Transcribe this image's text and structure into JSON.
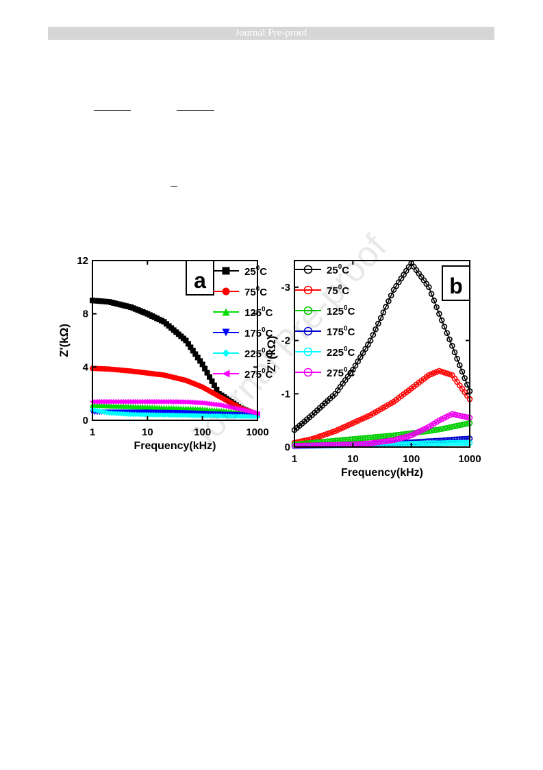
{
  "header": {
    "label": "Journal Pre-proof"
  },
  "watermark": {
    "text": "Journal Pre-proof"
  },
  "chart_data": [
    {
      "panel": "a",
      "type": "line",
      "xscale": "log",
      "xlim": [
        1,
        1000
      ],
      "ylim": [
        0,
        12
      ],
      "xticks": [
        "1",
        "10",
        "100",
        "1000"
      ],
      "yticks": [
        "0",
        "4",
        "8",
        "12"
      ],
      "xlabel": "Frequency(kHz)",
      "ylabel": "Z'(kΩ)",
      "legend_position": "top-right",
      "grid": false,
      "x": [
        1,
        2,
        5,
        10,
        20,
        50,
        100,
        200,
        500,
        1000
      ],
      "series": [
        {
          "name": "25°C",
          "label_base": "25",
          "color": "#000000",
          "marker": "square",
          "values": [
            9.0,
            8.9,
            8.5,
            8.0,
            7.4,
            6.0,
            4.2,
            2.0,
            0.9,
            0.4
          ]
        },
        {
          "name": "75°C",
          "label_base": "75",
          "color": "#ff0000",
          "marker": "circle",
          "values": [
            3.9,
            3.85,
            3.7,
            3.55,
            3.4,
            3.0,
            2.5,
            1.8,
            0.9,
            0.45
          ]
        },
        {
          "name": "125°C",
          "label_base": "125",
          "color": "#00dd00",
          "marker": "triangle-up",
          "values": [
            1.15,
            1.1,
            1.05,
            1.0,
            0.95,
            0.9,
            0.85,
            0.75,
            0.6,
            0.45
          ]
        },
        {
          "name": "175°C",
          "label_base": "175",
          "color": "#0000ff",
          "marker": "triangle-down",
          "values": [
            0.6,
            0.6,
            0.6,
            0.6,
            0.58,
            0.55,
            0.5,
            0.45,
            0.4,
            0.35
          ]
        },
        {
          "name": "225°C",
          "label_base": "225",
          "color": "#00ffff",
          "marker": "diamond",
          "values": [
            0.8,
            0.55,
            0.45,
            0.42,
            0.4,
            0.38,
            0.35,
            0.33,
            0.3,
            0.28
          ]
        },
        {
          "name": "275°C",
          "label_base": "275",
          "color": "#ff00ff",
          "marker": "triangle-left",
          "values": [
            1.4,
            1.4,
            1.4,
            1.4,
            1.4,
            1.38,
            1.3,
            1.15,
            0.8,
            0.5
          ]
        }
      ]
    },
    {
      "panel": "b",
      "type": "line",
      "xscale": "log",
      "xlim": [
        1,
        1000
      ],
      "ylim": [
        0,
        -3.5
      ],
      "xticks": [
        "1",
        "10",
        "100",
        "1000"
      ],
      "yticks": [
        "0",
        "-1",
        "-2",
        "-3"
      ],
      "xlabel": "Frequency(kHz)",
      "ylabel": "Z''(kΩ)",
      "legend_position": "top-left",
      "grid": false,
      "x": [
        1,
        2,
        5,
        10,
        20,
        50,
        100,
        200,
        300,
        500,
        1000
      ],
      "series": [
        {
          "name": "25°C",
          "label_base": "25",
          "color": "#000000",
          "marker": "half-circle",
          "values": [
            -0.32,
            -0.6,
            -1.0,
            -1.45,
            -2.0,
            -2.95,
            -3.45,
            -3.0,
            -2.5,
            -1.9,
            -1.05
          ]
        },
        {
          "name": "75°C",
          "label_base": "75",
          "color": "#ff0000",
          "marker": "half-circle",
          "values": [
            -0.08,
            -0.15,
            -0.3,
            -0.45,
            -0.6,
            -0.85,
            -1.1,
            -1.35,
            -1.43,
            -1.35,
            -0.9
          ]
        },
        {
          "name": "125°C",
          "label_base": "125",
          "color": "#00cc00",
          "marker": "half-circle",
          "values": [
            -0.05,
            -0.08,
            -0.12,
            -0.15,
            -0.18,
            -0.22,
            -0.26,
            -0.3,
            -0.33,
            -0.38,
            -0.45
          ]
        },
        {
          "name": "175°C",
          "label_base": "175",
          "color": "#0000cc",
          "marker": "half-circle",
          "values": [
            -0.02,
            -0.03,
            -0.04,
            -0.05,
            -0.06,
            -0.08,
            -0.09,
            -0.11,
            -0.12,
            -0.14,
            -0.16
          ]
        },
        {
          "name": "225°C",
          "label_base": "225",
          "color": "#00ffff",
          "marker": "half-circle",
          "values": [
            -0.01,
            -0.02,
            -0.03,
            -0.04,
            -0.04,
            -0.05,
            -0.06,
            -0.07,
            -0.07,
            -0.08,
            -0.08
          ]
        },
        {
          "name": "275°C",
          "label_base": "275",
          "color": "#ee00ee",
          "marker": "half-circle",
          "values": [
            -0.02,
            -0.03,
            -0.04,
            -0.05,
            -0.07,
            -0.13,
            -0.22,
            -0.38,
            -0.5,
            -0.62,
            -0.55
          ]
        }
      ]
    }
  ]
}
